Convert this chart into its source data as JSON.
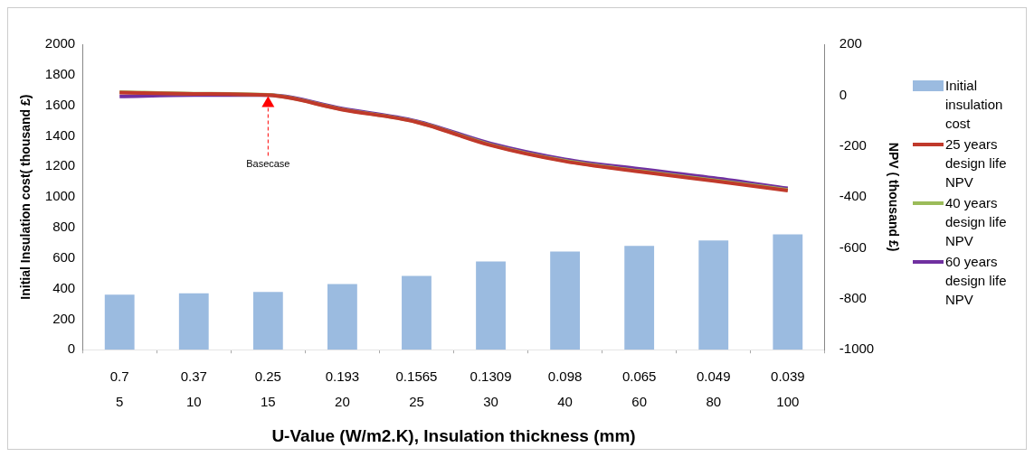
{
  "chart_data": {
    "type": "bar",
    "xlabel": "U-Value (W/m2.K), Insulation thickness (mm)",
    "ylabel": "Initial Insulation cost( thousand £)",
    "y2label": "NPV ( thousand £)",
    "categories": [
      "0.7\n5",
      "0.37\n10",
      "0.25\n15",
      "0.193\n20",
      "0.1565\n25",
      "0.1309\n30",
      "0.098\n40",
      "0.065\n60",
      "0.049\n80",
      "0.039\n100"
    ],
    "series": [
      {
        "name": "Initial insulation cost",
        "color": "#9bbbe0",
        "values": [
          360,
          370,
          378,
          430,
          483,
          578,
          643,
          680,
          715,
          755
        ]
      },
      {
        "name": "25 years design life NPV",
        "type": "line",
        "axis": "y2",
        "color": "#c0392b",
        "values": [
          10,
          5,
          0,
          -57,
          -106,
          -197,
          -260,
          -300,
          -337,
          -375
        ]
      },
      {
        "name": "40 years design life NPV",
        "type": "line",
        "axis": "y2",
        "color": "#9bbb59",
        "values": [
          12,
          6,
          1,
          -56,
          -105,
          -195,
          -258,
          -298,
          -334,
          -372
        ]
      },
      {
        "name": "60 years design life NPV",
        "type": "line",
        "axis": "y2",
        "color": "#7030a0",
        "values": [
          -5,
          0,
          0,
          -53,
          -102,
          -190,
          -252,
          -290,
          -325,
          -366
        ]
      }
    ],
    "ylim": [
      0,
      2000
    ],
    "yticks": [
      0,
      200,
      400,
      600,
      800,
      1000,
      1200,
      1400,
      1600,
      1800,
      2000
    ],
    "y2lim": [
      -1000,
      200
    ],
    "y2ticks": [
      -1000,
      -800,
      -600,
      -400,
      -200,
      0,
      200
    ],
    "annotations": [
      {
        "text": "Basecase",
        "x": "0.25\n15",
        "y": 1660
      }
    ],
    "grid": false,
    "legend": "right",
    "marker": "none",
    "line_style": "solid"
  }
}
